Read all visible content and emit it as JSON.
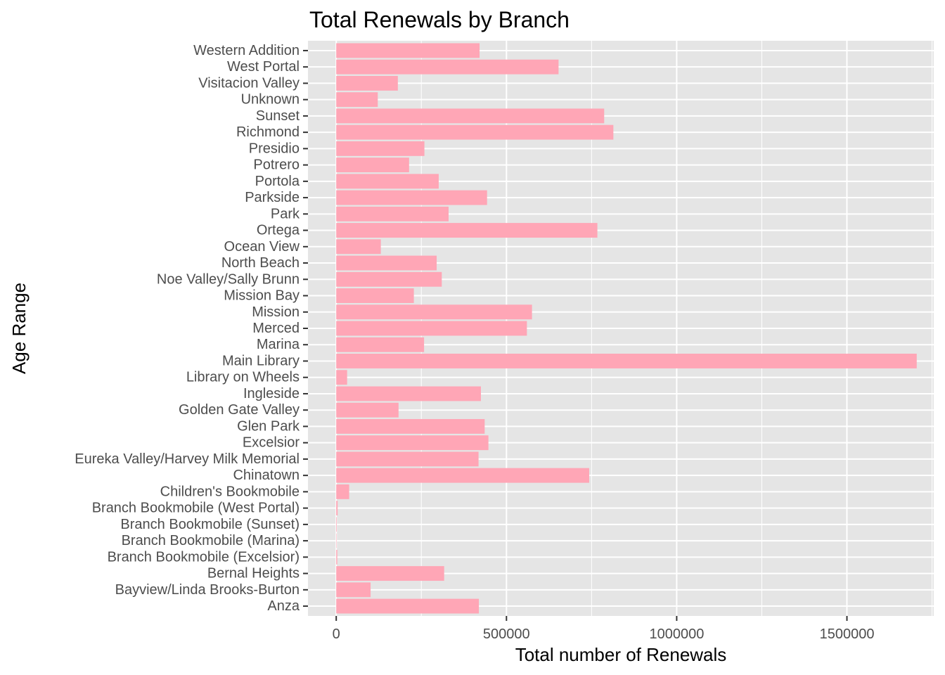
{
  "chart_data": {
    "type": "bar",
    "orientation": "horizontal",
    "title": "Total Renewals by Branch",
    "xlabel": "Total number of Renewals",
    "ylabel": "Age Range",
    "xlim": [
      -83000,
      1755000
    ],
    "xticks": [
      0,
      500000,
      1000000,
      1500000
    ],
    "grid": true,
    "legend": "none",
    "bar_color": "#ffa6b6",
    "panel_color": "#e5e5e5",
    "categories": [
      "Anza",
      "Bayview/Linda Brooks-Burton",
      "Bernal Heights",
      "Branch Bookmobile (Excelsior)",
      "Branch Bookmobile (Marina)",
      "Branch Bookmobile (Sunset)",
      "Branch Bookmobile (West Portal)",
      "Children's Bookmobile",
      "Chinatown",
      "Eureka Valley/Harvey Milk Memorial",
      "Excelsior",
      "Glen Park",
      "Golden Gate Valley",
      "Ingleside",
      "Library on Wheels",
      "Main Library",
      "Marina",
      "Merced",
      "Mission",
      "Mission Bay",
      "Noe Valley/Sally Brunn",
      "North Beach",
      "Ocean View",
      "Ortega",
      "Park",
      "Parkside",
      "Portola",
      "Potrero",
      "Presidio",
      "Richmond",
      "Sunset",
      "Unknown",
      "Visitacion Valley",
      "West Portal",
      "Western Addition"
    ],
    "values": [
      419000,
      101000,
      317000,
      3000,
      1000,
      1500,
      4000,
      38000,
      743000,
      418000,
      447000,
      436000,
      183000,
      425000,
      32000,
      1705000,
      258000,
      560000,
      575000,
      228000,
      310000,
      295000,
      131000,
      767000,
      330000,
      443000,
      301000,
      214000,
      259000,
      814000,
      787000,
      122000,
      181000,
      653000,
      421000
    ]
  }
}
